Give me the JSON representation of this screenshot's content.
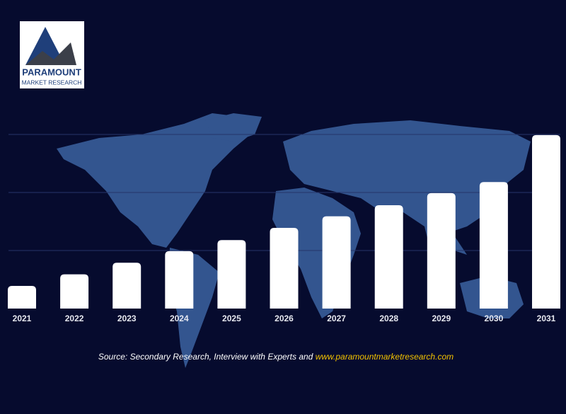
{
  "chart_data": {
    "type": "bar",
    "logo": {
      "name": "PARAMOUNT",
      "tagline": "MARKET RESEARCH"
    },
    "categories": [
      "2021",
      "2022",
      "2023",
      "2024",
      "2025",
      "2026",
      "2027",
      "2028",
      "2029",
      "2030",
      "2031"
    ],
    "values": [
      0.39,
      0.59,
      0.79,
      0.99,
      1.18,
      1.39,
      1.59,
      1.78,
      1.99,
      2.18,
      2.99
    ],
    "color": "#ffffff",
    "ylim": [
      0,
      3
    ],
    "yticks": [
      1,
      2,
      3
    ],
    "grid": true,
    "source": "Source: Secondary Research, Interview with Experts and",
    "source_link": "www.paramountmarketresearch.com"
  }
}
